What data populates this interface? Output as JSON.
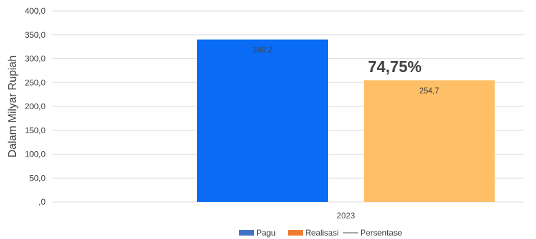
{
  "chart_data": {
    "type": "bar",
    "categories": [
      "2023"
    ],
    "series": [
      {
        "name": "Pagu",
        "values": [
          340.2
        ],
        "label_text": "340,2",
        "color": "#0a6cf5"
      },
      {
        "name": "Realisasi",
        "values": [
          254.7
        ],
        "label_text": "254,7",
        "color": "#ffbf66"
      },
      {
        "name": "Persentase",
        "values": [
          74.75
        ],
        "label_text": "74,75%",
        "color": "#a6a6a6",
        "kind": "line"
      }
    ],
    "ylabel": "Dalam Milyar Rupiah",
    "xlabel": "",
    "ylim": [
      0,
      400
    ],
    "yticks": [
      0,
      50,
      100,
      150,
      200,
      250,
      300,
      350,
      400
    ],
    "ytick_labels": [
      ",0",
      "50,0",
      "100,0",
      "150,0",
      "200,0",
      "250,0",
      "300,0",
      "350,0",
      "400,0"
    ],
    "grid": true,
    "legend_position": "bottom",
    "legend_colors": {
      "Pagu": "#4472c4",
      "Realisasi": "#ed7d31",
      "Persentase": "#a6a6a6"
    },
    "gridline_color": "#d9d9d9"
  }
}
